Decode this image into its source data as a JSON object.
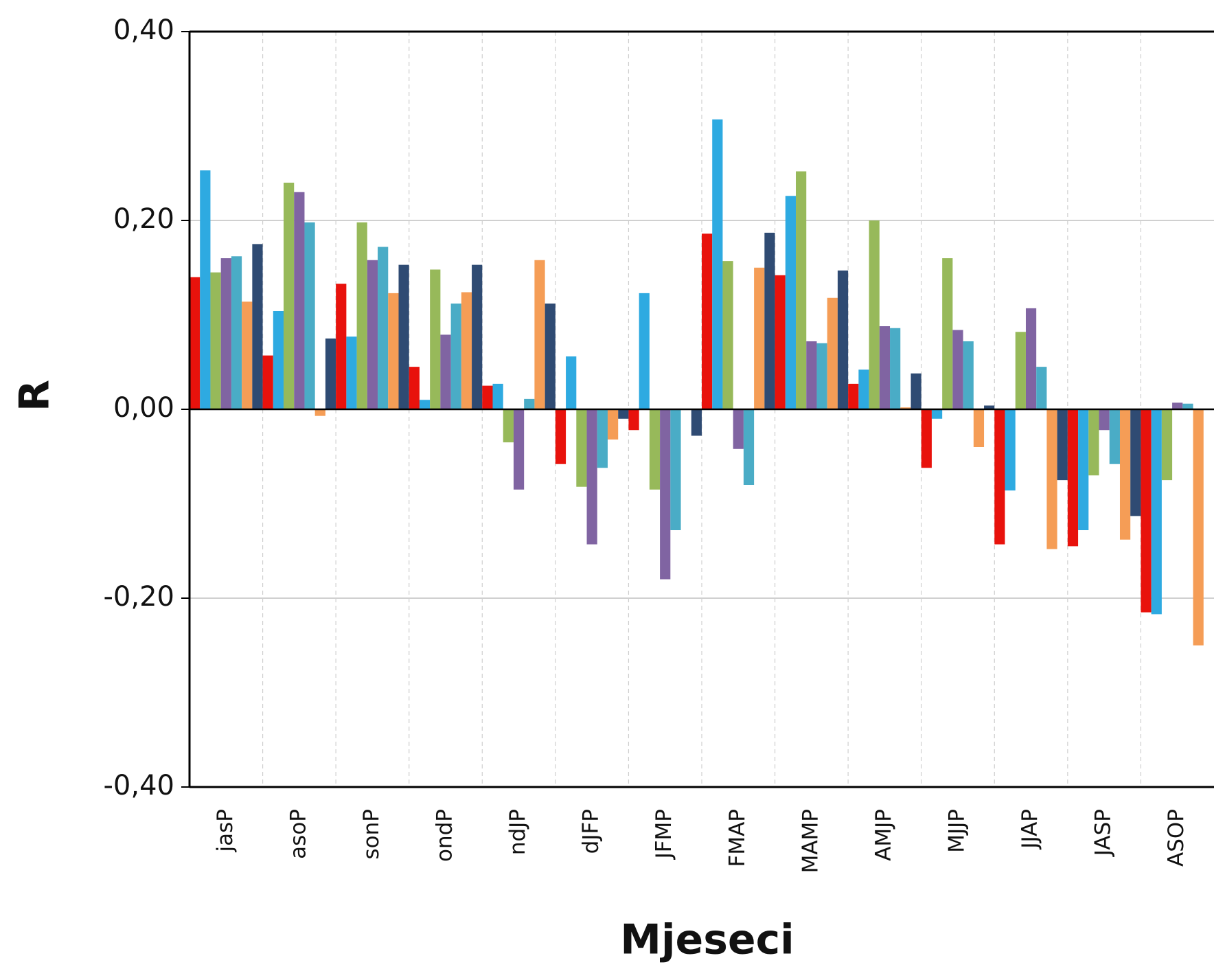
{
  "chart_data": {
    "type": "bar",
    "x_label": "Mjeseci",
    "y_label": "R",
    "categories": [
      "jasP",
      "asoP",
      "sonP",
      "ondP",
      "ndJP",
      "dJFP",
      "JFMP",
      "FMAP",
      "MAMP",
      "AMJP",
      "MJJP",
      "JJAP",
      "JASP",
      "ASOP"
    ],
    "series": [
      {
        "color": "#e8120c",
        "values": [
          0.14,
          0.057,
          0.133,
          0.045,
          0.025,
          -0.058,
          -0.022,
          0.186,
          0.142,
          0.027,
          -0.062,
          -0.143,
          -0.145,
          -0.215
        ]
      },
      {
        "color": "#2eaae1",
        "values": [
          0.253,
          0.104,
          0.077,
          0.01,
          0.027,
          0.056,
          0.123,
          0.307,
          0.226,
          0.042,
          -0.01,
          -0.086,
          -0.128,
          -0.217
        ]
      },
      {
        "color": "#97b95a",
        "values": [
          0.145,
          0.24,
          0.198,
          0.148,
          -0.035,
          -0.082,
          -0.085,
          0.157,
          0.252,
          0.2,
          0.16,
          0.082,
          -0.07,
          -0.075
        ]
      },
      {
        "color": "#8064a2",
        "values": [
          0.16,
          0.23,
          0.158,
          0.079,
          -0.085,
          -0.143,
          -0.18,
          -0.042,
          0.072,
          0.088,
          0.084,
          0.107,
          -0.022,
          0.007
        ]
      },
      {
        "color": "#4aacc6",
        "values": [
          0.162,
          0.198,
          0.172,
          0.112,
          0.011,
          -0.062,
          -0.128,
          -0.08,
          0.07,
          0.086,
          0.072,
          0.045,
          -0.058,
          0.006
        ]
      },
      {
        "color": "#f59d56",
        "values": [
          0.114,
          -0.007,
          0.123,
          0.124,
          0.158,
          -0.032,
          0,
          0.15,
          0.118,
          0.002,
          -0.04,
          -0.148,
          -0.138,
          -0.25
        ]
      },
      {
        "color": "#2f4b73",
        "values": [
          0.175,
          0.075,
          0.153,
          0.153,
          0.112,
          -0.01,
          -0.028,
          0.187,
          0.147,
          0.038,
          0.004,
          -0.075,
          -0.113,
          null
        ]
      }
    ],
    "ylim": [
      -0.4,
      0.4
    ],
    "yticks": [
      {
        "value": -0.4,
        "label": "-0,40"
      },
      {
        "value": -0.2,
        "label": "-0,20"
      },
      {
        "value": 0,
        "label": "0,00"
      },
      {
        "value": 0.2,
        "label": "0,20"
      },
      {
        "value": 0.4,
        "label": "0,40"
      }
    ],
    "grid": true
  }
}
